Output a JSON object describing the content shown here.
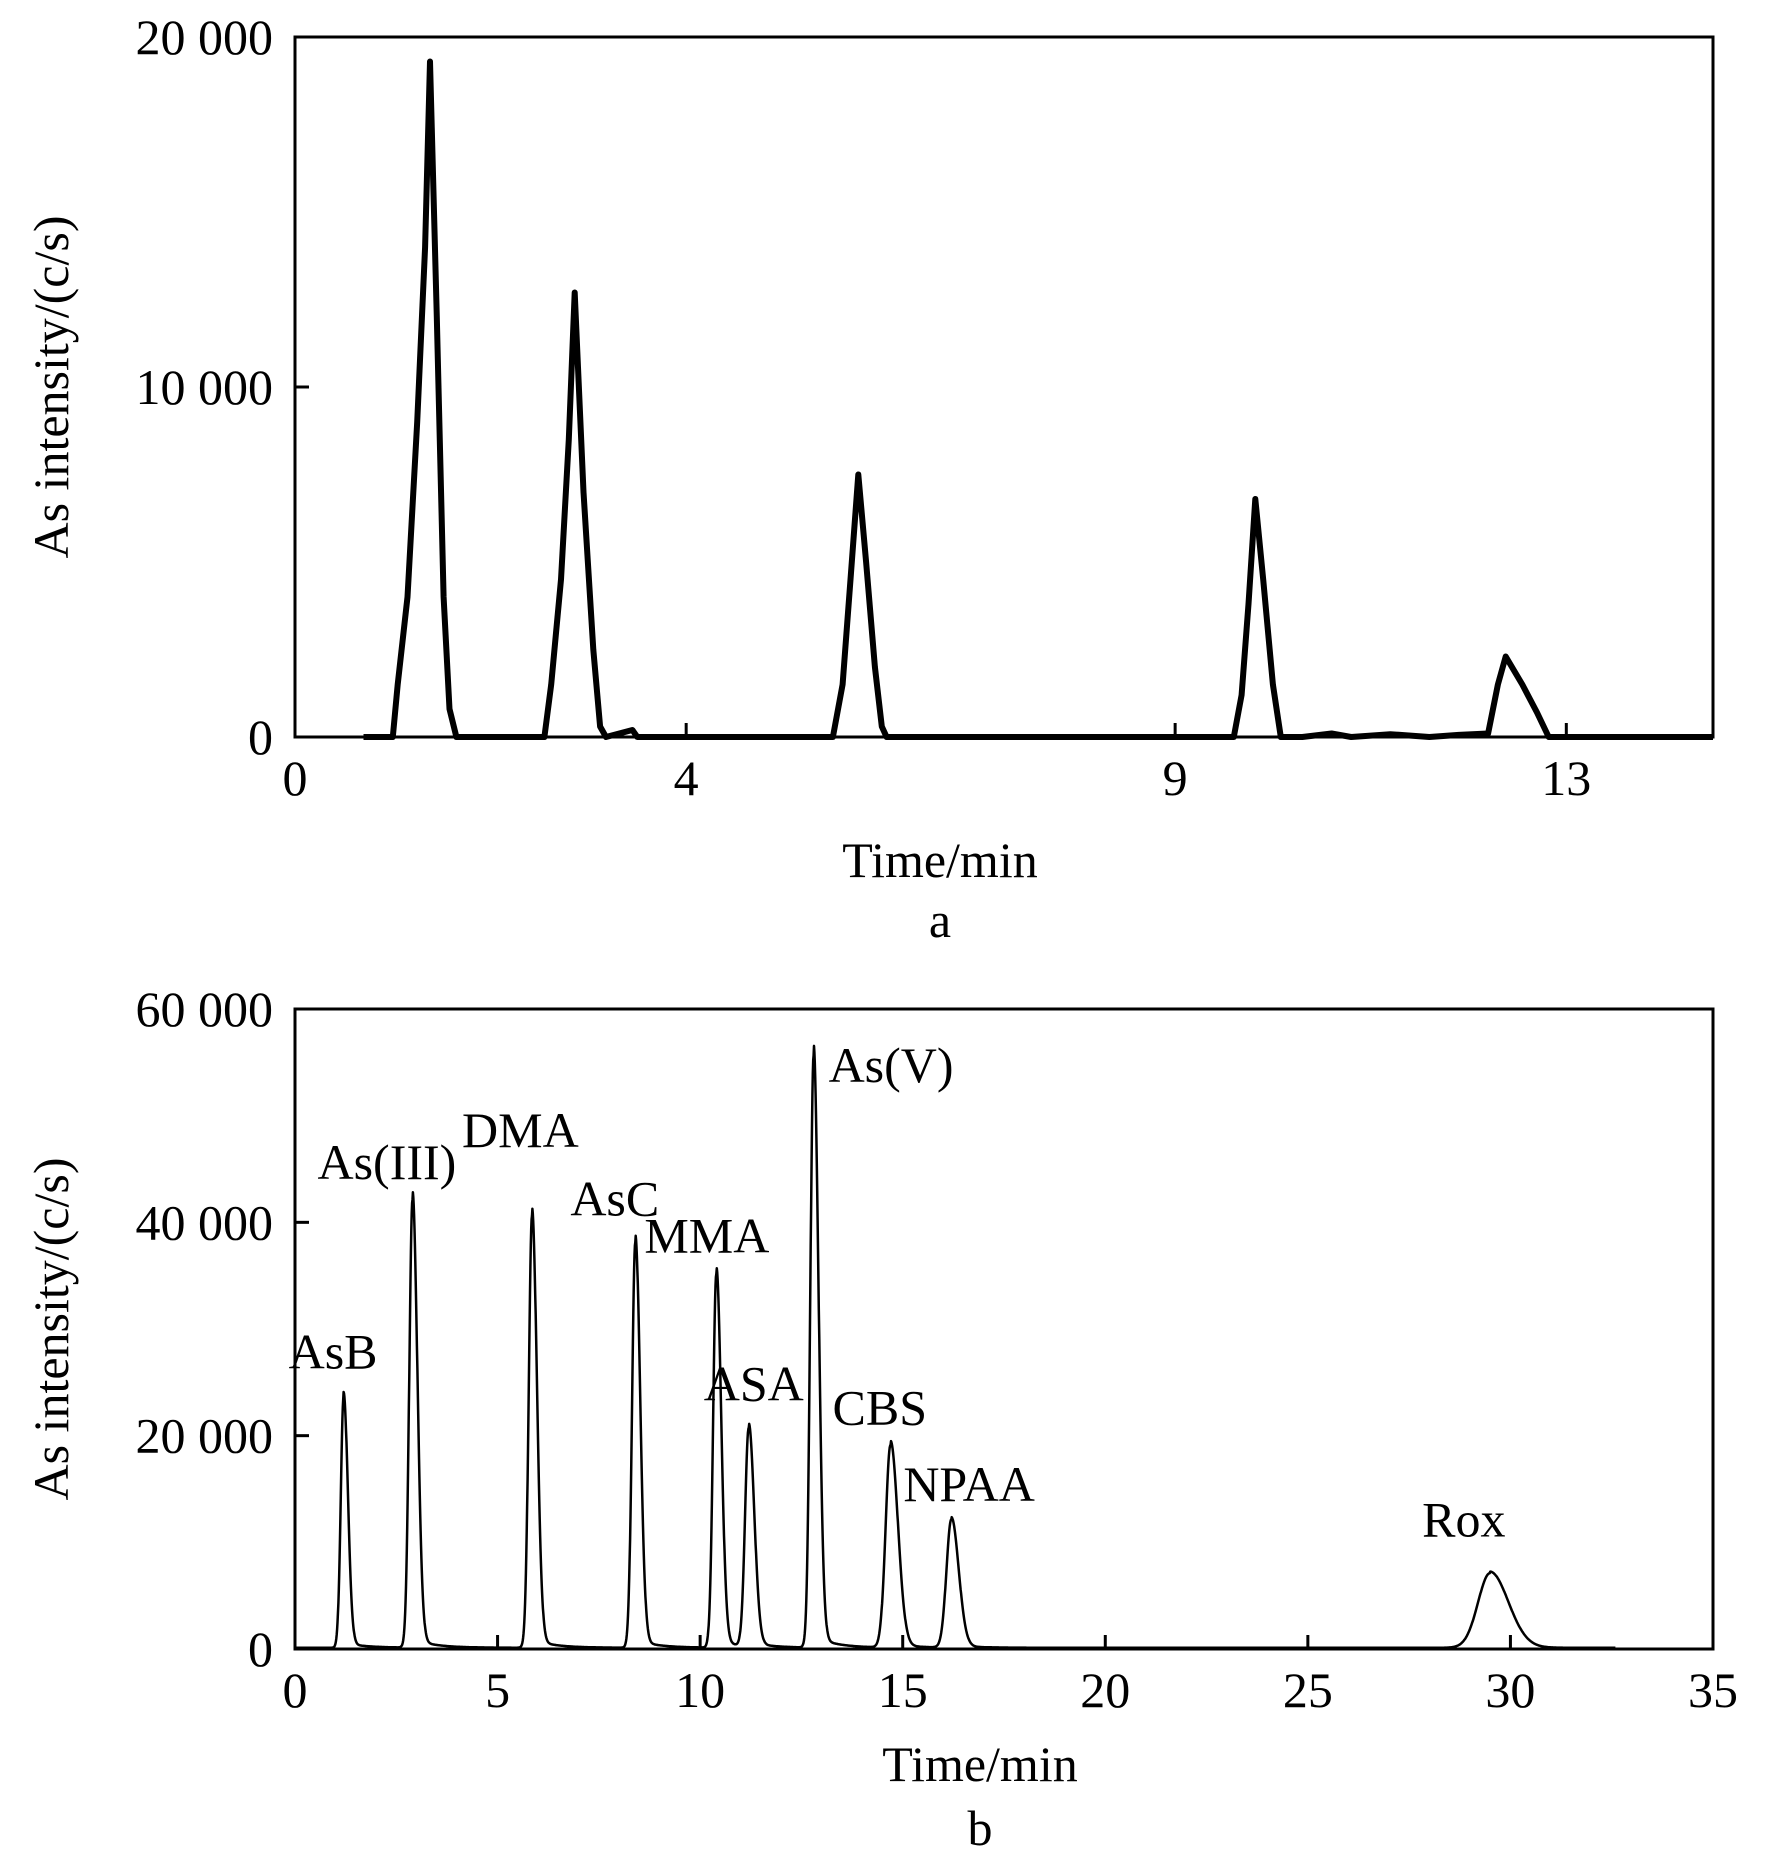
{
  "chart_data": [
    {
      "panel_label": "a",
      "type": "line",
      "xlabel": "Time/min",
      "ylabel": "As intensity/(c/s)",
      "xlim": [
        0,
        14.5
      ],
      "ylim": [
        0,
        20000
      ],
      "x_ticks": [
        0,
        4,
        9,
        13
      ],
      "x_tick_labels": [
        "0",
        "4",
        "9",
        "13"
      ],
      "y_ticks": [
        0,
        10000,
        20000
      ],
      "y_tick_labels": [
        "0",
        "10 000",
        "20 000"
      ],
      "grid": false,
      "series": [
        {
          "points": [
            [
              0.7,
              0
            ],
            [
              1.0,
              0
            ],
            [
              1.05,
              1500
            ],
            [
              1.15,
              4000
            ],
            [
              1.25,
              9000
            ],
            [
              1.33,
              14000
            ],
            [
              1.38,
              19300
            ],
            [
              1.45,
              12000
            ],
            [
              1.52,
              4000
            ],
            [
              1.58,
              800
            ],
            [
              1.65,
              0
            ],
            [
              2.55,
              0
            ],
            [
              2.62,
              1500
            ],
            [
              2.72,
              4500
            ],
            [
              2.8,
              8500
            ],
            [
              2.86,
              12700
            ],
            [
              2.95,
              7000
            ],
            [
              3.05,
              2500
            ],
            [
              3.12,
              300
            ],
            [
              3.18,
              0
            ],
            [
              3.45,
              200
            ],
            [
              3.5,
              0
            ],
            [
              5.5,
              0
            ],
            [
              5.6,
              1500
            ],
            [
              5.68,
              4500
            ],
            [
              5.76,
              7500
            ],
            [
              5.84,
              5000
            ],
            [
              5.93,
              2000
            ],
            [
              6.0,
              300
            ],
            [
              6.05,
              0
            ],
            [
              9.6,
              0
            ],
            [
              9.68,
              1200
            ],
            [
              9.75,
              3800
            ],
            [
              9.82,
              6800
            ],
            [
              9.9,
              4500
            ],
            [
              10.0,
              1500
            ],
            [
              10.08,
              0
            ],
            [
              10.3,
              0
            ],
            [
              10.6,
              100
            ],
            [
              10.8,
              0
            ],
            [
              11.2,
              80
            ],
            [
              11.6,
              0
            ],
            [
              11.9,
              60
            ],
            [
              12.2,
              100
            ],
            [
              12.3,
              1500
            ],
            [
              12.38,
              2300
            ],
            [
              12.55,
              1500
            ],
            [
              12.7,
              700
            ],
            [
              12.82,
              0
            ],
            [
              14.5,
              0
            ]
          ]
        }
      ]
    },
    {
      "panel_label": "b",
      "type": "line",
      "xlabel": "Time/min",
      "ylabel": "As intensity/(c/s)",
      "xlim": [
        0,
        35
      ],
      "ylim": [
        0,
        60000
      ],
      "x_ticks": [
        0,
        5,
        10,
        15,
        20,
        25,
        30,
        35
      ],
      "x_tick_labels": [
        "0",
        "5",
        "10",
        "15",
        "20",
        "25",
        "30",
        "35"
      ],
      "y_ticks": [
        0,
        20000,
        40000,
        60000
      ],
      "y_tick_labels": [
        "0",
        "20 000",
        "40 000",
        "60 000"
      ],
      "grid": false,
      "peaks": [
        {
          "label": "AsB",
          "time": 1.2,
          "height": 23500,
          "width": 0.07
        },
        {
          "label": "As(III)",
          "time": 2.9,
          "height": 42000,
          "width": 0.08
        },
        {
          "label": "DMA",
          "time": 5.85,
          "height": 40500,
          "width": 0.08
        },
        {
          "label": "AsC",
          "time": 8.4,
          "height": 38000,
          "width": 0.08
        },
        {
          "label": "MMA",
          "time": 10.4,
          "height": 35000,
          "width": 0.08
        },
        {
          "label": "ASA",
          "time": 11.2,
          "height": 20500,
          "width": 0.09
        },
        {
          "label": "As(V)",
          "time": 12.8,
          "height": 55500,
          "width": 0.08
        },
        {
          "label": "CBS",
          "time": 14.7,
          "height": 19000,
          "width": 0.12
        },
        {
          "label": "NPAA",
          "time": 16.2,
          "height": 12000,
          "width": 0.12
        },
        {
          "label": "Rox",
          "time": 29.5,
          "height": 7000,
          "width": 0.3
        }
      ]
    }
  ]
}
